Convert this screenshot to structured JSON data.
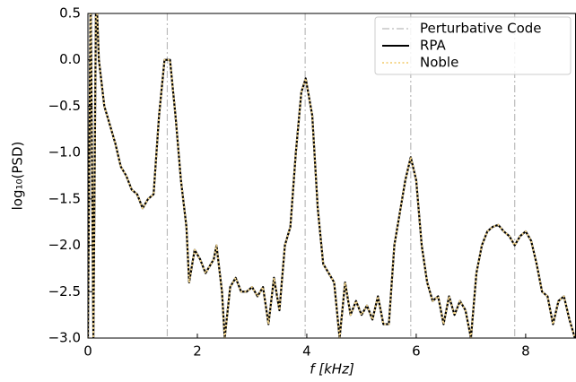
{
  "chart_data": {
    "type": "line",
    "xlabel": "f [kHz]",
    "ylabel": "log₁₀(PSD)",
    "x": [
      0.0,
      0.05,
      0.1,
      0.15,
      0.2,
      0.3,
      0.4,
      0.5,
      0.6,
      0.7,
      0.8,
      0.9,
      1.0,
      1.1,
      1.2,
      1.3,
      1.4,
      1.5,
      1.6,
      1.7,
      1.8,
      1.85,
      1.95,
      2.05,
      2.15,
      2.3,
      2.35,
      2.45,
      2.5,
      2.6,
      2.7,
      2.8,
      2.9,
      3.0,
      3.1,
      3.2,
      3.3,
      3.4,
      3.5,
      3.6,
      3.7,
      3.8,
      3.9,
      3.98,
      4.1,
      4.2,
      4.3,
      4.4,
      4.5,
      4.6,
      4.7,
      4.8,
      4.9,
      5.0,
      5.1,
      5.2,
      5.3,
      5.4,
      5.5,
      5.6,
      5.7,
      5.8,
      5.9,
      6.0,
      6.1,
      6.2,
      6.3,
      6.4,
      6.5,
      6.6,
      6.7,
      6.8,
      6.9,
      7.0,
      7.1,
      7.2,
      7.3,
      7.4,
      7.5,
      7.6,
      7.7,
      7.8,
      7.9,
      8.0,
      8.1,
      8.2,
      8.3,
      8.4,
      8.5,
      8.6,
      8.7,
      8.8,
      8.9
    ],
    "series": [
      {
        "name": "RPA",
        "color": "#000000",
        "style": "solid",
        "values": [
          -3.0,
          0.8,
          -3.0,
          0.8,
          0.0,
          -0.5,
          -0.7,
          -0.9,
          -1.15,
          -1.25,
          -1.4,
          -1.45,
          -1.6,
          -1.5,
          -1.45,
          -0.6,
          0.0,
          0.0,
          -0.6,
          -1.3,
          -1.8,
          -2.4,
          -2.05,
          -2.15,
          -2.3,
          -2.15,
          -2.0,
          -2.5,
          -3.0,
          -2.45,
          -2.35,
          -2.5,
          -2.5,
          -2.45,
          -2.55,
          -2.45,
          -2.85,
          -2.35,
          -2.7,
          -2.0,
          -1.8,
          -1.0,
          -0.35,
          -0.2,
          -0.6,
          -1.6,
          -2.2,
          -2.3,
          -2.4,
          -3.0,
          -2.4,
          -2.75,
          -2.6,
          -2.75,
          -2.65,
          -2.8,
          -2.55,
          -2.85,
          -2.85,
          -2.0,
          -1.65,
          -1.3,
          -1.05,
          -1.3,
          -2.0,
          -2.4,
          -2.6,
          -2.55,
          -2.85,
          -2.55,
          -2.75,
          -2.6,
          -2.7,
          -3.0,
          -2.3,
          -2.0,
          -1.85,
          -1.8,
          -1.78,
          -1.85,
          -1.9,
          -2.0,
          -1.9,
          -1.85,
          -1.95,
          -2.2,
          -2.5,
          -2.55,
          -2.85,
          -2.6,
          -2.55,
          -2.8,
          -3.0
        ]
      },
      {
        "name": "Noble",
        "color": "#f5d78e",
        "style": "dotted",
        "values": [
          -3.0,
          0.8,
          -3.0,
          0.8,
          0.0,
          -0.5,
          -0.7,
          -0.9,
          -1.15,
          -1.25,
          -1.4,
          -1.45,
          -1.6,
          -1.5,
          -1.45,
          -0.6,
          0.0,
          0.0,
          -0.6,
          -1.3,
          -1.8,
          -2.4,
          -2.05,
          -2.15,
          -2.3,
          -2.15,
          -2.0,
          -2.5,
          -3.0,
          -2.45,
          -2.35,
          -2.5,
          -2.5,
          -2.45,
          -2.55,
          -2.45,
          -2.85,
          -2.35,
          -2.7,
          -2.0,
          -1.8,
          -1.0,
          -0.35,
          -0.2,
          -0.6,
          -1.6,
          -2.2,
          -2.3,
          -2.4,
          -3.0,
          -2.4,
          -2.75,
          -2.6,
          -2.75,
          -2.65,
          -2.8,
          -2.55,
          -2.85,
          -2.85,
          -2.0,
          -1.65,
          -1.3,
          -1.05,
          -1.3,
          -2.0,
          -2.4,
          -2.6,
          -2.55,
          -2.85,
          -2.55,
          -2.75,
          -2.6,
          -2.7,
          -3.0,
          -2.3,
          -2.0,
          -1.85,
          -1.8,
          -1.78,
          -1.85,
          -1.9,
          -2.0,
          -1.9,
          -1.85,
          -1.95,
          -2.2,
          -2.5,
          -2.55,
          -2.85,
          -2.6,
          -2.55,
          -2.8,
          -3.0
        ]
      }
    ],
    "vlines": {
      "name": "Perturbative Code",
      "color": "#bbbbbb",
      "x": [
        1.45,
        3.97,
        5.9,
        7.8
      ]
    },
    "xlim": [
      0,
      8.92
    ],
    "ylim": [
      -3.0,
      0.5
    ],
    "xticks": [
      0,
      2,
      4,
      6,
      8
    ],
    "yticks": [
      {
        "value": 0.5,
        "label": "0.5"
      },
      {
        "value": 0,
        "label": "0.0"
      },
      {
        "value": -0.5,
        "label": "−0.5"
      },
      {
        "value": -1,
        "label": "−1.0"
      },
      {
        "value": -1.5,
        "label": "−1.5"
      },
      {
        "value": -2,
        "label": "−2.0"
      },
      {
        "value": -2.5,
        "label": "−2.5"
      },
      {
        "value": -3,
        "label": "−3.0"
      }
    ],
    "legend": "upper right"
  }
}
